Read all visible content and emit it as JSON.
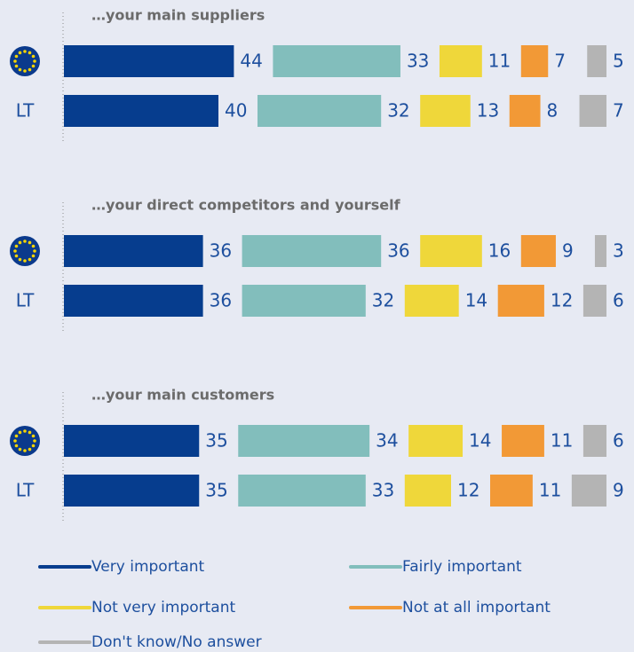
{
  "chart_data": {
    "type": "bar",
    "orientation": "horizontal",
    "stacked": true,
    "groups": [
      "…your main suppliers",
      "…your direct competitors and yourself",
      "…your main customers"
    ],
    "categories": [
      null,
      "LT",
      null,
      "LT",
      null,
      "LT"
    ],
    "series": [
      {
        "name": "Very important",
        "color": "#063d8e",
        "values": [
          44,
          40,
          36,
          36,
          35,
          35
        ]
      },
      {
        "name": "Fairly important",
        "color": "#82bebc",
        "values": [
          33,
          32,
          36,
          32,
          34,
          33
        ]
      },
      {
        "name": "Not very important",
        "color": "#efd73a",
        "values": [
          11,
          13,
          16,
          14,
          14,
          12
        ]
      },
      {
        "name": "Not at all important",
        "color": "#f29936",
        "values": [
          7,
          8,
          9,
          12,
          11,
          11
        ]
      },
      {
        "name": "Don't know/No answer",
        "color": "#b4b4b4",
        "values": [
          5,
          7,
          3,
          6,
          6,
          9
        ]
      }
    ]
  }
}
